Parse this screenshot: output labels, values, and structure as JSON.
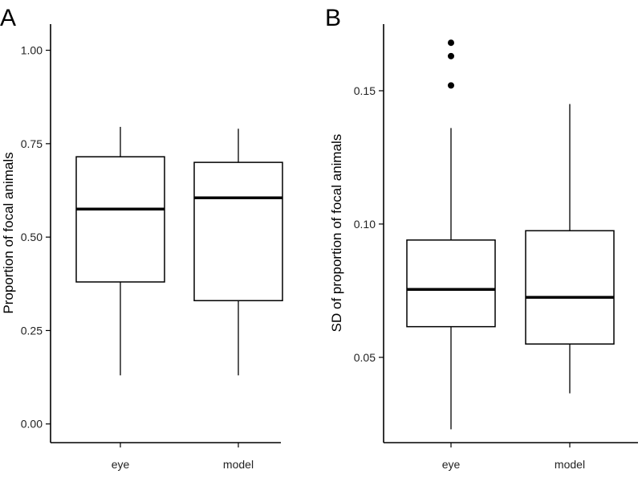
{
  "chart_data": [
    {
      "type": "boxplot",
      "panel_label": "A",
      "ylabel": "Proportion of focal animals",
      "xlabel": "",
      "categories": [
        "eye",
        "model"
      ],
      "ylim": [
        -0.05,
        1.07
      ],
      "yticks": [
        0.0,
        0.25,
        0.5,
        0.75,
        1.0
      ],
      "ytick_labels": [
        "0.00",
        "0.25",
        "0.50",
        "0.75",
        "1.00"
      ],
      "grid": false,
      "boxes": [
        {
          "category": "eye",
          "whisker_low": 0.13,
          "q1": 0.38,
          "median": 0.575,
          "q3": 0.715,
          "whisker_high": 0.795,
          "outliers": []
        },
        {
          "category": "model",
          "whisker_low": 0.13,
          "q1": 0.33,
          "median": 0.605,
          "q3": 0.7,
          "whisker_high": 0.79,
          "outliers": []
        }
      ]
    },
    {
      "type": "boxplot",
      "panel_label": "B",
      "ylabel": "SD of proportion of focal animals",
      "xlabel": "",
      "categories": [
        "eye",
        "model"
      ],
      "ylim": [
        0.018,
        0.175
      ],
      "yticks": [
        0.05,
        0.1,
        0.15
      ],
      "ytick_labels": [
        "0.05",
        "0.10",
        "0.15"
      ],
      "grid": false,
      "boxes": [
        {
          "category": "eye",
          "whisker_low": 0.023,
          "q1": 0.0615,
          "median": 0.0755,
          "q3": 0.094,
          "whisker_high": 0.136,
          "outliers": [
            0.152,
            0.163,
            0.168
          ]
        },
        {
          "category": "model",
          "whisker_low": 0.0365,
          "q1": 0.055,
          "median": 0.0725,
          "q3": 0.0975,
          "whisker_high": 0.145,
          "outliers": []
        }
      ]
    }
  ]
}
